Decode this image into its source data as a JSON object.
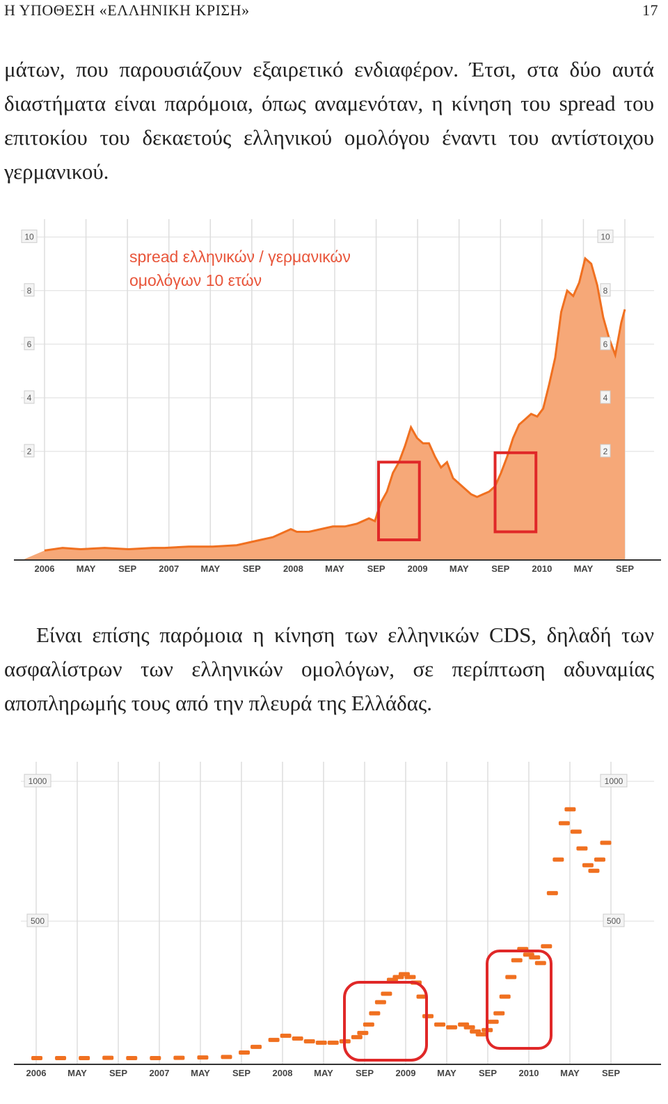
{
  "header": {
    "running_title": "Η ΥΠΟΘΕΣΗ «ΕΛΛΗΝΙΚΗ ΚΡΙΣΗ»",
    "page_number": "17"
  },
  "paragraphs": [
    "μάτων, που παρουσιάζουν εξαιρετικό ενδιαφέρον. Έτσι, στα δύο αυτά διαστήματα είναι παρόμοια, όπως αναμενόταν, η κίνηση του spread του επιτοκίου του δεκαετούς ελληνικού ομολόγου έναντι του αντίστοιχου γερμανικού.",
    "Είναι επίσης παρόμοια η κίνηση των ελληνικών CDS, δηλαδή των ασφαλίστρων των ελληνικών ομολόγων, σε περίπτωση αδυναμίας αποπληρωμής τους από την πλευρά της Ελλάδας."
  ],
  "colors": {
    "series": "#f07020",
    "fill": "#f6a878",
    "highlight": "#e02828",
    "annotation": "#e8553a",
    "grid": "#dddddd"
  },
  "chart_data": [
    {
      "type": "area",
      "annotation_lines": [
        "spread ελληνικών / γερμανικών",
        "ομολόγων 10 ετών"
      ],
      "x_tick_labels": [
        "2006",
        "MAY",
        "SEP",
        "2007",
        "MAY",
        "SEP",
        "2008",
        "MAY",
        "SEP",
        "2009",
        "MAY",
        "SEP",
        "2010",
        "MAY",
        "SEP"
      ],
      "y_tick_labels": [
        "2",
        "4",
        "6",
        "8",
        "10"
      ],
      "ylim": [
        -2,
        10.2
      ],
      "xlim": [
        2006.0,
        2010.83
      ],
      "x": [
        2006.0,
        2006.15,
        2006.3,
        2006.5,
        2006.7,
        2006.9,
        2007.0,
        2007.2,
        2007.4,
        2007.6,
        2007.7,
        2007.8,
        2007.9,
        2008.0,
        2008.05,
        2008.1,
        2008.2,
        2008.3,
        2008.4,
        2008.5,
        2008.6,
        2008.7,
        2008.75,
        2008.8,
        2008.85,
        2008.9,
        2008.95,
        2009.0,
        2009.05,
        2009.1,
        2009.15,
        2009.2,
        2009.25,
        2009.3,
        2009.35,
        2009.4,
        2009.5,
        2009.55,
        2009.6,
        2009.65,
        2009.7,
        2009.75,
        2009.8,
        2009.85,
        2009.9,
        2009.95,
        2010.0,
        2010.05,
        2010.1,
        2010.15,
        2010.2,
        2010.25,
        2010.3,
        2010.35,
        2010.4,
        2010.45,
        2010.5,
        2010.55,
        2010.6,
        2010.65,
        2010.7,
        2010.75,
        2010.8,
        2010.83
      ],
      "y": [
        -1.7,
        -1.6,
        -1.65,
        -1.6,
        -1.65,
        -1.6,
        -1.6,
        -1.55,
        -1.55,
        -1.5,
        -1.4,
        -1.3,
        -1.2,
        -1.0,
        -0.9,
        -1.0,
        -1.0,
        -0.9,
        -0.8,
        -0.8,
        -0.7,
        -0.5,
        -0.6,
        0.1,
        0.5,
        1.2,
        1.6,
        2.2,
        2.9,
        2.5,
        2.3,
        2.3,
        1.8,
        1.4,
        1.6,
        1.0,
        0.6,
        0.4,
        0.3,
        0.4,
        0.5,
        0.7,
        1.2,
        1.8,
        2.5,
        3.0,
        3.2,
        3.4,
        3.3,
        3.6,
        4.5,
        5.5,
        7.2,
        8.0,
        7.8,
        8.3,
        9.2,
        9.0,
        8.2,
        7.0,
        6.2,
        5.6,
        6.8,
        7.3
      ],
      "highlight_boxes": [
        {
          "x_range": [
            2008.78,
            2009.12
          ],
          "y_range": [
            -1.3,
            1.6
          ]
        },
        {
          "x_range": [
            2009.75,
            2010.09
          ],
          "y_range": [
            -1.0,
            1.95
          ]
        }
      ]
    },
    {
      "type": "scatter",
      "x_tick_labels": [
        "2006",
        "MAY",
        "SEP",
        "2007",
        "MAY",
        "SEP",
        "2008",
        "MAY",
        "SEP",
        "2009",
        "MAY",
        "SEP",
        "2010",
        "MAY",
        "SEP"
      ],
      "y_tick_labels": [
        "500",
        "1000"
      ],
      "ylim": [
        0,
        1070
      ],
      "xlim": [
        2006.0,
        2010.85
      ],
      "x": [
        2006.0,
        2006.2,
        2006.4,
        2006.6,
        2006.8,
        2007.0,
        2007.2,
        2007.4,
        2007.6,
        2007.75,
        2007.85,
        2008.0,
        2008.1,
        2008.2,
        2008.3,
        2008.4,
        2008.5,
        2008.6,
        2008.7,
        2008.75,
        2008.8,
        2008.85,
        2008.9,
        2008.95,
        2009.0,
        2009.05,
        2009.1,
        2009.15,
        2009.2,
        2009.25,
        2009.3,
        2009.4,
        2009.5,
        2009.6,
        2009.65,
        2009.7,
        2009.75,
        2009.8,
        2009.85,
        2009.9,
        2009.95,
        2010.0,
        2010.05,
        2010.1,
        2010.15,
        2010.2,
        2010.25,
        2010.3,
        2010.35,
        2010.4,
        2010.45,
        2010.5,
        2010.55,
        2010.6,
        2010.65,
        2010.7,
        2010.75,
        2010.8
      ],
      "y": [
        10,
        10,
        10,
        11,
        10,
        10,
        11,
        12,
        14,
        30,
        50,
        75,
        90,
        80,
        70,
        65,
        65,
        70,
        85,
        100,
        130,
        170,
        210,
        240,
        290,
        300,
        310,
        300,
        280,
        230,
        160,
        130,
        120,
        130,
        120,
        105,
        95,
        110,
        140,
        170,
        230,
        300,
        360,
        400,
        380,
        370,
        350,
        410,
        600,
        720,
        850,
        900,
        820,
        760,
        700,
        680,
        720,
        780
      ]
    }
  ]
}
